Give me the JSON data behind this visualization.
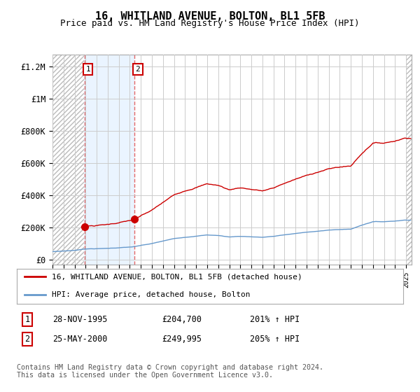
{
  "title": "16, WHITLAND AVENUE, BOLTON, BL1 5FB",
  "subtitle": "Price paid vs. HM Land Registry's House Price Index (HPI)",
  "ylabel_ticks": [
    "£0",
    "£200K",
    "£400K",
    "£600K",
    "£800K",
    "£1M",
    "£1.2M"
  ],
  "ytick_values": [
    0,
    200000,
    400000,
    600000,
    800000,
    1000000,
    1200000
  ],
  "ylim": [
    -30000,
    1270000
  ],
  "xlim_start": 1993.0,
  "xlim_end": 2025.5,
  "hatch_region_start": 1993.0,
  "hatch_region_end": 1995.85,
  "hatch_region2_start": 2025.0,
  "hatch_region2_end": 2025.5,
  "blue_region_start": 1995.85,
  "blue_region_end": 2000.42,
  "sale1_x": 1995.91,
  "sale1_y": 204700,
  "sale2_x": 2000.42,
  "sale2_y": 249995,
  "red_line_color": "#cc0000",
  "blue_line_color": "#6699cc",
  "blue_bg_color": "#ddeeff",
  "grid_color": "#cccccc",
  "bg_color": "#ffffff",
  "legend_red_label": "16, WHITLAND AVENUE, BOLTON, BL1 5FB (detached house)",
  "legend_blue_label": "HPI: Average price, detached house, Bolton",
  "footnote": "Contains HM Land Registry data © Crown copyright and database right 2024.\nThis data is licensed under the Open Government Licence v3.0.",
  "table_rows": [
    {
      "num": "1",
      "date": "28-NOV-1995",
      "price": "£204,700",
      "hpi": "201% ↑ HPI"
    },
    {
      "num": "2",
      "date": "25-MAY-2000",
      "price": "£249,995",
      "hpi": "205% ↑ HPI"
    }
  ]
}
